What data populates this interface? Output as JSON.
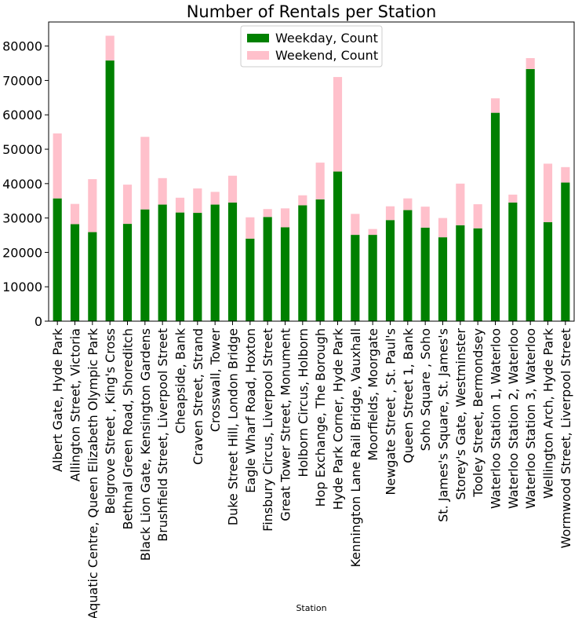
{
  "chart_data": {
    "type": "bar",
    "stacked": true,
    "title": "Number of Rentals per Station",
    "xlabel": "Station",
    "ylabel": "",
    "ylim": [
      0,
      87000
    ],
    "yticks": [
      0,
      10000,
      20000,
      30000,
      40000,
      50000,
      60000,
      70000,
      80000
    ],
    "legend_position": "upper center",
    "categories": [
      "Albert Gate, Hyde Park",
      "Allington Street, Victoria",
      "Aquatic Centre, Queen Elizabeth Olympic Park",
      "Belgrove Street , King's Cross",
      "Bethnal Green Road, Shoreditch",
      "Black Lion Gate, Kensington Gardens",
      "Brushfield Street, Liverpool Street",
      "Cheapside, Bank",
      "Craven Street, Strand",
      "Crosswall, Tower",
      "Duke Street Hill, London Bridge",
      "Eagle Wharf Road, Hoxton",
      "Finsbury Circus, Liverpool Street",
      "Great Tower Street, Monument",
      "Holborn Circus, Holborn",
      "Hop Exchange, The Borough",
      "Hyde Park Corner, Hyde Park",
      "Kennington Lane Rail Bridge, Vauxhall",
      "Moorfields, Moorgate",
      "Newgate Street , St. Paul's",
      "Queen Street 1, Bank",
      "Soho Square , Soho",
      "St. James's Square, St. James's",
      "Storey's Gate, Westminster",
      "Tooley Street, Bermondsey",
      "Waterloo Station 1, Waterloo",
      "Waterloo Station 2, Waterloo",
      "Waterloo Station 3, Waterloo",
      "Wellington Arch, Hyde Park",
      "Wormwood Street, Liverpool Street"
    ],
    "series": [
      {
        "name": "Weekday, Count",
        "color": "#008000",
        "values": [
          35700,
          28200,
          25900,
          75800,
          28300,
          32500,
          33900,
          31600,
          31500,
          33900,
          34500,
          24000,
          30300,
          27300,
          33700,
          35400,
          43500,
          25100,
          25100,
          29400,
          32300,
          27200,
          24400,
          27900,
          27000,
          60600,
          34500,
          73300,
          28800,
          40300
        ]
      },
      {
        "name": "Weekend, Count",
        "color": "#ffc0cb",
        "values": [
          18900,
          5900,
          15400,
          7200,
          11400,
          21100,
          7700,
          4300,
          7100,
          3700,
          7800,
          6200,
          2300,
          5500,
          2900,
          10700,
          27500,
          6100,
          1700,
          4000,
          3400,
          6100,
          5600,
          12100,
          7000,
          4200,
          2300,
          3200,
          17000,
          4500
        ]
      }
    ]
  }
}
